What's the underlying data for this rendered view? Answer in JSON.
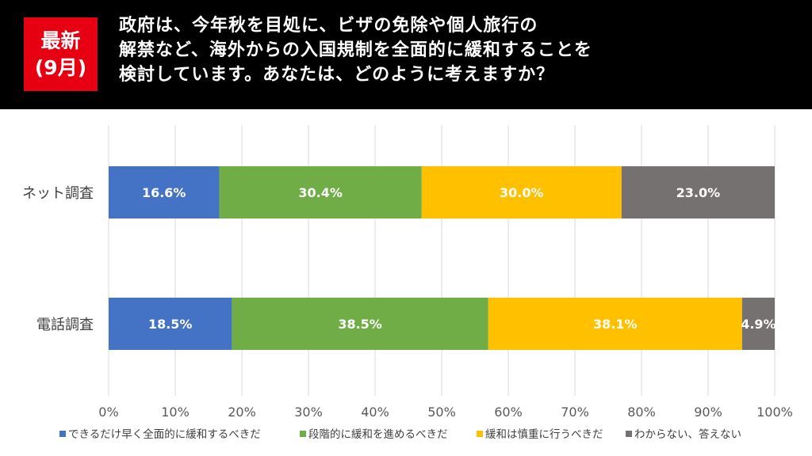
{
  "badge": {
    "line1": "最新",
    "line2": "(9月)"
  },
  "question": "政府は、今年秋を目処に、ビザの免除や個人旅行の\n解禁など、海外からの入国規制を全面的に緩和することを\n検討しています。あなたは、どのように考えますか？",
  "chart_data": {
    "type": "bar",
    "orientation": "horizontal",
    "stacked": true,
    "categories": [
      "ネット調査",
      "電話調査"
    ],
    "series": [
      {
        "name": "できるだけ早く全面的に緩和するべきだ",
        "values": [
          16.6,
          18.5
        ],
        "color": "#4472c4"
      },
      {
        "name": "段階的に緩和を進めるべきだ",
        "values": [
          30.4,
          38.5
        ],
        "color": "#70ad47"
      },
      {
        "name": "緩和は慎重に行うべきだ",
        "values": [
          30.0,
          38.1
        ],
        "color": "#ffc000"
      },
      {
        "name": "わからない、答えない",
        "values": [
          23.0,
          4.9
        ],
        "color": "#767171"
      }
    ],
    "data_labels": [
      [
        "16.6%",
        "30.4%",
        "30.0%",
        "23.0%"
      ],
      [
        "18.5%",
        "38.5%",
        "38.1%",
        "4.9%"
      ]
    ],
    "xticks": [
      "0%",
      "10%",
      "20%",
      "30%",
      "40%",
      "50%",
      "60%",
      "70%",
      "80%",
      "90%",
      "100%"
    ],
    "xlim": [
      0,
      100
    ],
    "grid": true,
    "legend_position": "bottom"
  }
}
